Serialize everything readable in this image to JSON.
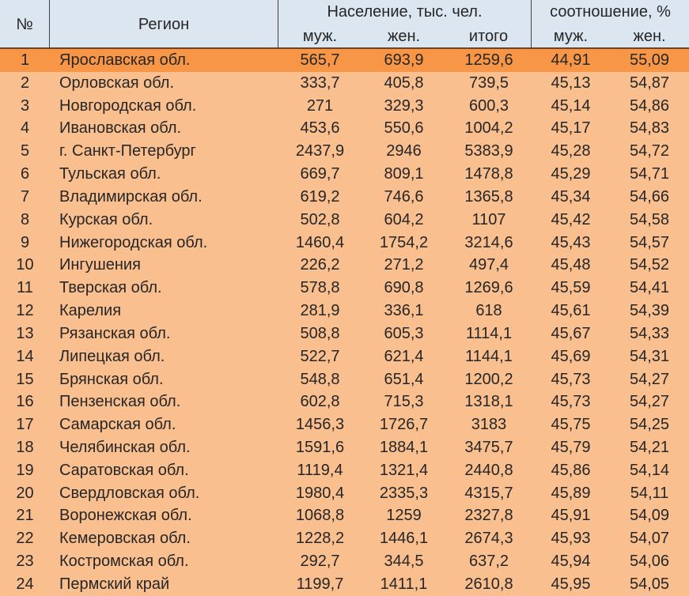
{
  "colors": {
    "header_bg": "#dce6f1",
    "row_bg": "#fabf8f",
    "highlight_row_bg": "#f79646",
    "text": "#262626",
    "header_grid_line": "#3f3f3f",
    "header_bottom_line": "#6e4428"
  },
  "table": {
    "columns": {
      "num": "№",
      "region": "Регион",
      "population_group": "Население, тыс. чел.",
      "ratio_group": "соотношение, %",
      "male": "муж.",
      "female": "жен.",
      "total": "итого",
      "ratio_male": "муж.",
      "ratio_female": "жен."
    },
    "rows": [
      {
        "num": "1",
        "region": "Ярославская обл.",
        "male": "565,7",
        "female": "693,9",
        "total": "1259,6",
        "ratio_male": "44,91",
        "ratio_female": "55,09",
        "highlight": true
      },
      {
        "num": "2",
        "region": "Орловская обл.",
        "male": "333,7",
        "female": "405,8",
        "total": "739,5",
        "ratio_male": "45,13",
        "ratio_female": "54,87",
        "highlight": false
      },
      {
        "num": "3",
        "region": "Новгородская обл.",
        "male": "271",
        "female": "329,3",
        "total": "600,3",
        "ratio_male": "45,14",
        "ratio_female": "54,86",
        "highlight": false
      },
      {
        "num": "4",
        "region": "Ивановская обл.",
        "male": "453,6",
        "female": "550,6",
        "total": "1004,2",
        "ratio_male": "45,17",
        "ratio_female": "54,83",
        "highlight": false
      },
      {
        "num": "5",
        "region": "г. Санкт-Петербург",
        "male": "2437,9",
        "female": "2946",
        "total": "5383,9",
        "ratio_male": "45,28",
        "ratio_female": "54,72",
        "highlight": false
      },
      {
        "num": "6",
        "region": "Тульская обл.",
        "male": "669,7",
        "female": "809,1",
        "total": "1478,8",
        "ratio_male": "45,29",
        "ratio_female": "54,71",
        "highlight": false
      },
      {
        "num": "7",
        "region": "Владимирская обл.",
        "male": "619,2",
        "female": "746,6",
        "total": "1365,8",
        "ratio_male": "45,34",
        "ratio_female": "54,66",
        "highlight": false
      },
      {
        "num": "8",
        "region": "Курская обл.",
        "male": "502,8",
        "female": "604,2",
        "total": "1107",
        "ratio_male": "45,42",
        "ratio_female": "54,58",
        "highlight": false
      },
      {
        "num": "9",
        "region": "Нижегородская обл.",
        "male": "1460,4",
        "female": "1754,2",
        "total": "3214,6",
        "ratio_male": "45,43",
        "ratio_female": "54,57",
        "highlight": false
      },
      {
        "num": "10",
        "region": "Ингушения",
        "male": "226,2",
        "female": "271,2",
        "total": "497,4",
        "ratio_male": "45,48",
        "ratio_female": "54,52",
        "highlight": false
      },
      {
        "num": "11",
        "region": "Тверская обл.",
        "male": "578,8",
        "female": "690,8",
        "total": "1269,6",
        "ratio_male": "45,59",
        "ratio_female": "54,41",
        "highlight": false
      },
      {
        "num": "12",
        "region": "Карелия",
        "male": "281,9",
        "female": "336,1",
        "total": "618",
        "ratio_male": "45,61",
        "ratio_female": "54,39",
        "highlight": false
      },
      {
        "num": "13",
        "region": "Рязанская обл.",
        "male": "508,8",
        "female": "605,3",
        "total": "1114,1",
        "ratio_male": "45,67",
        "ratio_female": "54,33",
        "highlight": false
      },
      {
        "num": "14",
        "region": "Липецкая обл.",
        "male": "522,7",
        "female": "621,4",
        "total": "1144,1",
        "ratio_male": "45,69",
        "ratio_female": "54,31",
        "highlight": false
      },
      {
        "num": "15",
        "region": "Брянская обл.",
        "male": "548,8",
        "female": "651,4",
        "total": "1200,2",
        "ratio_male": "45,73",
        "ratio_female": "54,27",
        "highlight": false
      },
      {
        "num": "16",
        "region": "Пензенская обл.",
        "male": "602,8",
        "female": "715,3",
        "total": "1318,1",
        "ratio_male": "45,73",
        "ratio_female": "54,27",
        "highlight": false
      },
      {
        "num": "17",
        "region": "Самарская обл.",
        "male": "1456,3",
        "female": "1726,7",
        "total": "3183",
        "ratio_male": "45,75",
        "ratio_female": "54,25",
        "highlight": false
      },
      {
        "num": "18",
        "region": "Челябинская обл.",
        "male": "1591,6",
        "female": "1884,1",
        "total": "3475,7",
        "ratio_male": "45,79",
        "ratio_female": "54,21",
        "highlight": false
      },
      {
        "num": "19",
        "region": "Саратовская обл.",
        "male": "1119,4",
        "female": "1321,4",
        "total": "2440,8",
        "ratio_male": "45,86",
        "ratio_female": "54,14",
        "highlight": false
      },
      {
        "num": "20",
        "region": "Свердловская обл.",
        "male": "1980,4",
        "female": "2335,3",
        "total": "4315,7",
        "ratio_male": "45,89",
        "ratio_female": "54,11",
        "highlight": false
      },
      {
        "num": "21",
        "region": "Воронежская обл.",
        "male": "1068,8",
        "female": "1259",
        "total": "2327,8",
        "ratio_male": "45,91",
        "ratio_female": "54,09",
        "highlight": false
      },
      {
        "num": "22",
        "region": "Кемеровская обл.",
        "male": "1228,2",
        "female": "1446,1",
        "total": "2674,3",
        "ratio_male": "45,93",
        "ratio_female": "54,07",
        "highlight": false
      },
      {
        "num": "23",
        "region": "Костромская обл.",
        "male": "292,7",
        "female": "344,5",
        "total": "637,2",
        "ratio_male": "45,94",
        "ratio_female": "54,06",
        "highlight": false
      },
      {
        "num": "24",
        "region": "Пермский край",
        "male": "1199,7",
        "female": "1411,1",
        "total": "2610,8",
        "ratio_male": "45,95",
        "ratio_female": "54,05",
        "highlight": false
      }
    ]
  }
}
